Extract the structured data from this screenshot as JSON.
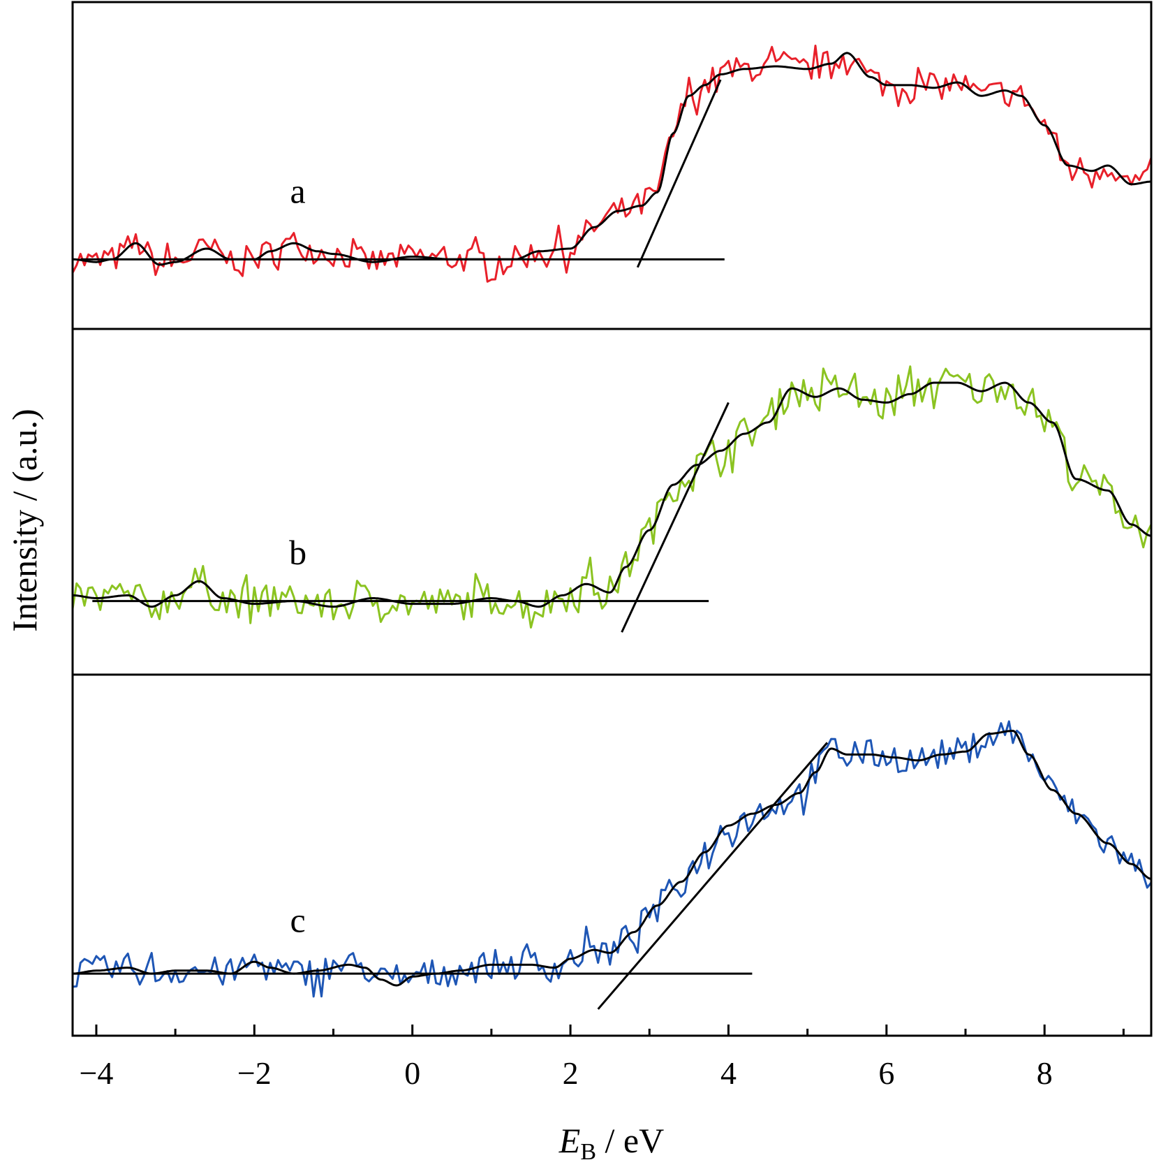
{
  "chart_data": {
    "type": "line",
    "xlabel": {
      "italic": "E",
      "sub": "B",
      "rest": " / eV"
    },
    "ylabel": "Intensity / (a.u.)",
    "xlim": [
      -4.3,
      9.35
    ],
    "x_ticks": [
      "−4",
      "−2",
      "0",
      "2",
      "4",
      "6",
      "8"
    ],
    "x_tick_values": [
      -4,
      -2,
      0,
      2,
      4,
      6,
      8
    ],
    "grid": false,
    "legend": "none",
    "panels": [
      {
        "label": "a",
        "color": "#e8202a",
        "ylim": [
          0,
          100
        ],
        "baseline": 15,
        "onset_line": {
          "x": [
            2.85,
            3.9
          ],
          "y": [
            12,
            82
          ]
        },
        "baseline_extent": [
          -4.2,
          3.95
        ],
        "label_pos": [
          -1.45,
          36
        ],
        "smooth": {
          "x": [
            -4.3,
            -4.0,
            -3.8,
            -3.5,
            -3.2,
            -3.0,
            -2.6,
            -2.3,
            -2.0,
            -1.8,
            -1.5,
            -1.2,
            -1.0,
            -0.5,
            0.0,
            0.5,
            1.0,
            1.3,
            1.6,
            2.0,
            2.3,
            2.6,
            2.9,
            3.1,
            3.3,
            3.5,
            3.7,
            3.9,
            4.2,
            4.6,
            5.0,
            5.3,
            5.5,
            5.8,
            6.0,
            6.3,
            6.6,
            6.9,
            7.2,
            7.5,
            7.7,
            8.0,
            8.3,
            8.6,
            8.8,
            9.1,
            9.35
          ],
          "y": [
            15,
            14,
            15,
            21,
            13,
            14,
            19,
            15,
            15,
            18,
            21,
            18,
            17,
            14,
            16,
            15,
            15,
            15,
            18,
            19,
            27,
            33,
            35,
            40,
            62,
            76,
            80,
            84,
            86,
            87,
            86,
            88,
            92,
            83,
            80,
            80,
            79,
            81,
            76,
            78,
            76,
            65,
            50,
            48,
            50,
            43,
            44
          ]
        },
        "raw_noise": 5
      },
      {
        "label": "b",
        "color": "#8bc321",
        "ylim": [
          0,
          100
        ],
        "baseline": 15,
        "onset_line": {
          "x": [
            2.65,
            4.0
          ],
          "y": [
            4,
            85
          ]
        },
        "baseline_extent": [
          -4.05,
          3.75
        ],
        "label_pos": [
          -1.45,
          28
        ],
        "smooth": {
          "x": [
            -4.3,
            -4.0,
            -3.6,
            -3.3,
            -3.0,
            -2.7,
            -2.4,
            -2.0,
            -1.5,
            -1.0,
            -0.5,
            0.0,
            0.5,
            1.0,
            1.3,
            1.6,
            1.9,
            2.2,
            2.5,
            2.7,
            3.0,
            3.3,
            3.6,
            3.9,
            4.2,
            4.5,
            4.8,
            5.1,
            5.4,
            5.7,
            6.0,
            6.3,
            6.6,
            6.9,
            7.2,
            7.5,
            7.8,
            8.1,
            8.4,
            8.8,
            9.1,
            9.35
          ],
          "y": [
            17,
            16,
            17,
            13,
            17,
            22,
            16,
            14,
            15,
            13,
            16,
            14,
            14,
            16,
            15,
            13,
            17,
            21,
            18,
            27,
            40,
            56,
            63,
            68,
            74,
            78,
            90,
            87,
            90,
            86,
            85,
            88,
            92,
            92,
            89,
            92,
            85,
            78,
            58,
            54,
            42,
            38
          ]
        },
        "raw_noise": 6
      },
      {
        "label": "c",
        "color": "#1e56b5",
        "ylim": [
          0,
          100
        ],
        "baseline": 10,
        "onset_line": {
          "x": [
            2.35,
            5.25
          ],
          "y": [
            -2,
            88
          ]
        },
        "baseline_extent": [
          -4.3,
          4.3
        ],
        "label_pos": [
          -1.45,
          24
        ],
        "smooth": {
          "x": [
            -4.3,
            -4.0,
            -3.6,
            -3.3,
            -3.0,
            -2.6,
            -2.3,
            -2.0,
            -1.8,
            -1.5,
            -1.2,
            -0.8,
            -0.6,
            -0.4,
            -0.2,
            0.0,
            0.3,
            0.6,
            1.0,
            1.5,
            1.8,
            2.0,
            2.3,
            2.5,
            2.8,
            3.1,
            3.4,
            3.7,
            4.0,
            4.3,
            4.6,
            4.9,
            5.1,
            5.3,
            5.5,
            5.8,
            6.1,
            6.4,
            6.7,
            7.0,
            7.3,
            7.6,
            7.8,
            8.1,
            8.4,
            8.8,
            9.1,
            9.35
          ],
          "y": [
            10,
            11,
            12,
            10,
            11,
            11,
            10,
            14,
            12,
            10,
            11,
            13,
            12,
            8,
            6,
            9,
            10,
            11,
            13,
            13,
            12,
            15,
            18,
            17,
            24,
            33,
            41,
            51,
            60,
            64,
            67,
            71,
            78,
            86,
            84,
            84,
            83,
            82,
            84,
            85,
            91,
            92,
            84,
            72,
            64,
            54,
            47,
            42
          ]
        },
        "raw_noise": 5
      }
    ]
  }
}
